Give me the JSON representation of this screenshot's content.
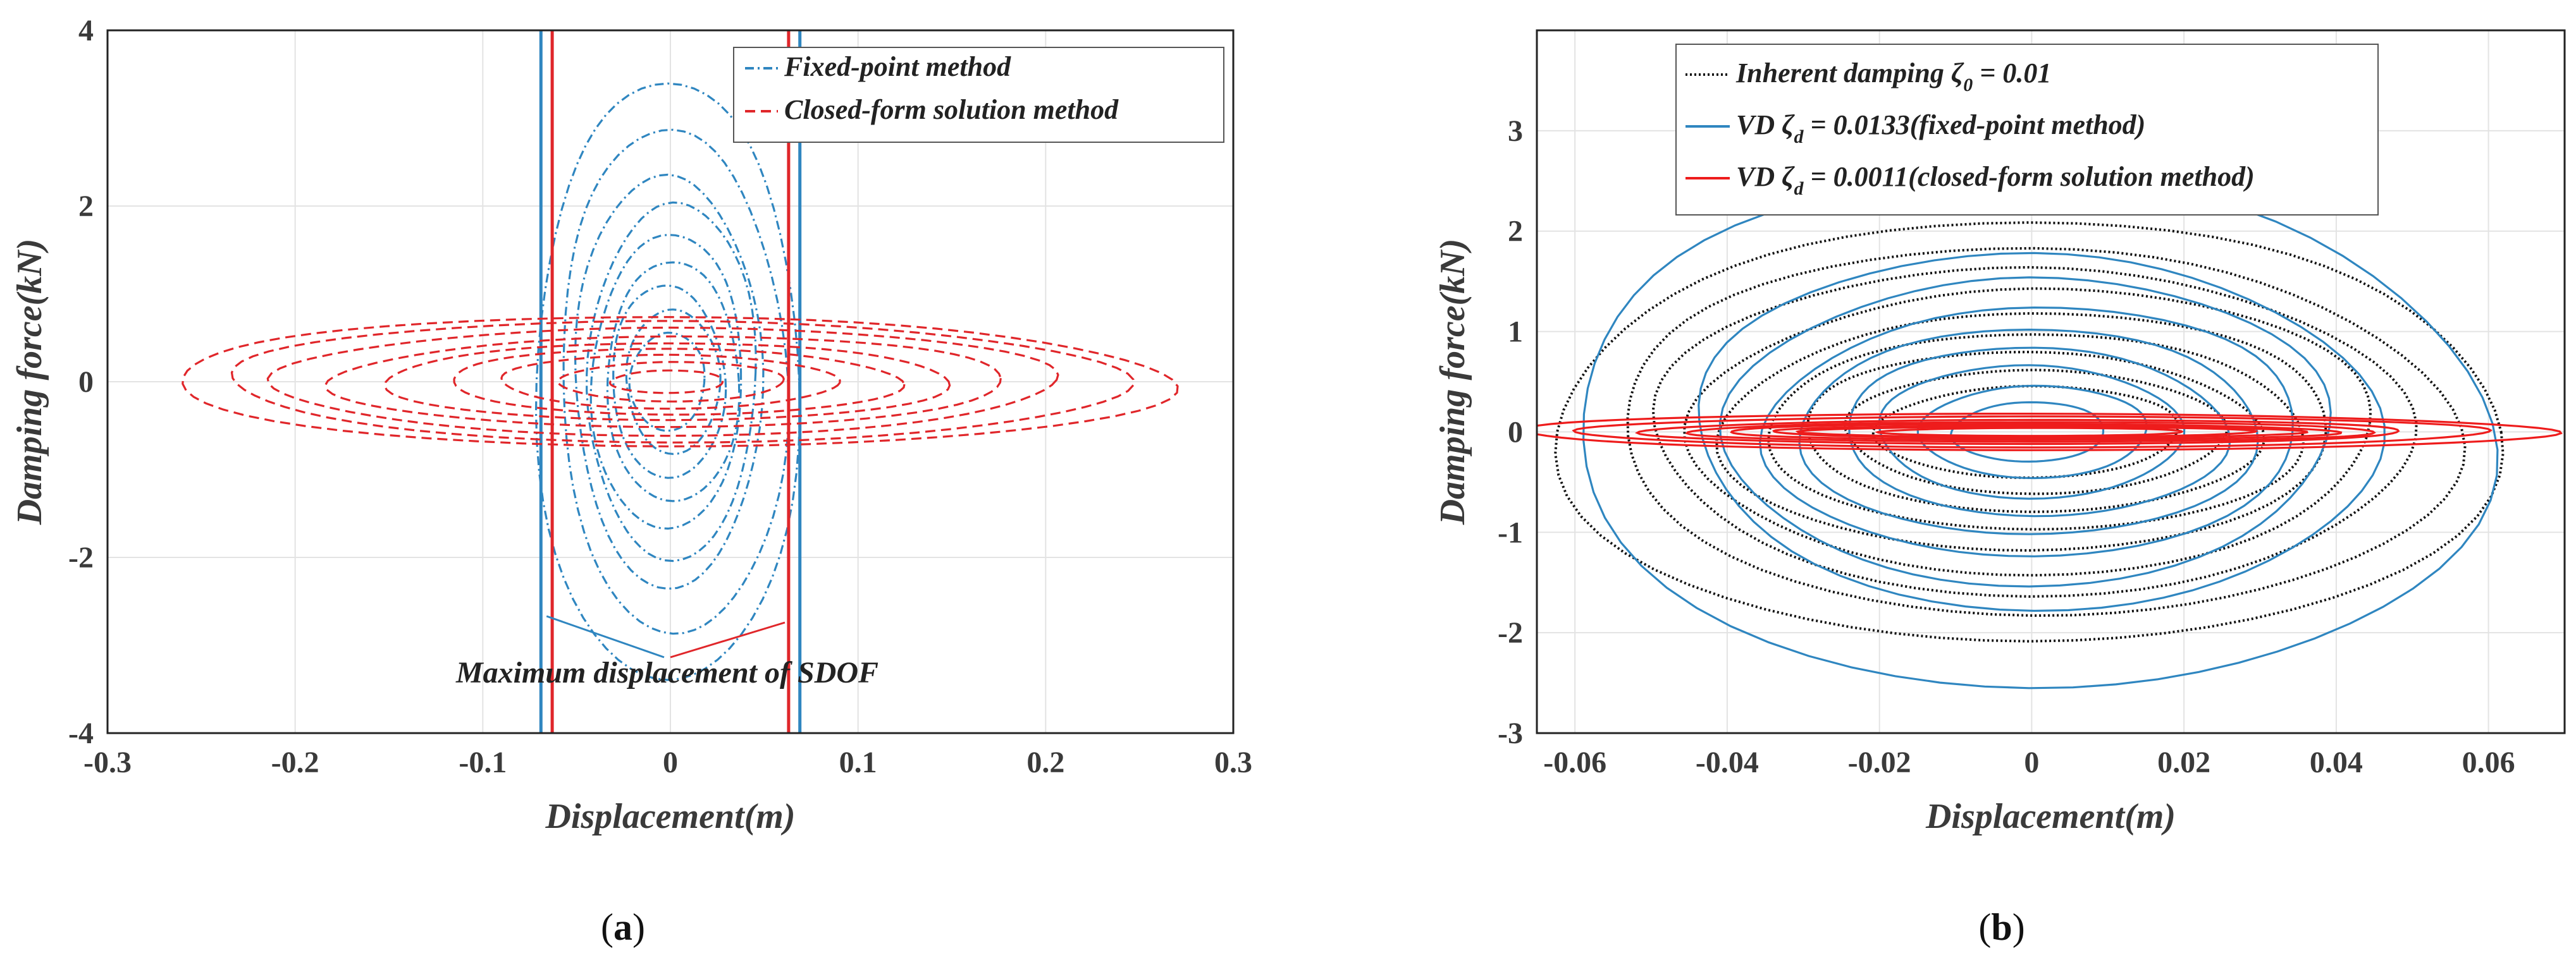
{
  "chart_data": [
    {
      "id": "a",
      "type": "line",
      "caption_letter": "a",
      "xlabel": "Displacement(m)",
      "ylabel": "Damping force(kN)",
      "xlim": [
        -0.3,
        0.3
      ],
      "ylim": [
        -4,
        4
      ],
      "xticks": [
        -0.3,
        -0.2,
        -0.1,
        0,
        0.1,
        0.2,
        0.3
      ],
      "xtick_labels": [
        "-0.3",
        "-0.2",
        "-0.1",
        "0",
        "0.1",
        "0.2",
        "0.3"
      ],
      "yticks": [
        -4,
        -2,
        0,
        2,
        4
      ],
      "ytick_labels": [
        "-4",
        "-2",
        "0",
        "2",
        "4"
      ],
      "grid": true,
      "legend_position": "top-right",
      "series": [
        {
          "name": "Fixed-point method",
          "color": "#2f86c0",
          "style": "dash-dot",
          "loops": [
            [
              0.07,
              3.5
            ],
            [
              0.06,
              2.9
            ],
            [
              0.05,
              2.3
            ],
            [
              0.045,
              2.0
            ],
            [
              0.04,
              1.7
            ],
            [
              0.035,
              1.4
            ],
            [
              0.03,
              1.1
            ],
            [
              0.025,
              0.8
            ],
            [
              0.02,
              0.55
            ]
          ],
          "vlines": [
            -0.069,
            0.069
          ]
        },
        {
          "name": "Closed-form solution method",
          "color": "#e0262a",
          "style": "dashed",
          "loops": [
            [
              0.265,
              0.75
            ],
            [
              0.24,
              0.68
            ],
            [
              0.21,
              0.6
            ],
            [
              0.18,
              0.52
            ],
            [
              0.15,
              0.45
            ],
            [
              0.12,
              0.38
            ],
            [
              0.09,
              0.3
            ],
            [
              0.06,
              0.22
            ],
            [
              0.03,
              0.13
            ]
          ],
          "vlines": [
            -0.063,
            0.063
          ]
        }
      ],
      "annotation": "Maximum displacement of SDOF"
    },
    {
      "id": "b",
      "type": "line",
      "caption_letter": "b",
      "xlabel": "Displacement(m)",
      "ylabel": "Damping force(kN)",
      "xlim": [
        -0.065,
        0.07
      ],
      "ylim": [
        -3,
        4
      ],
      "xticks": [
        -0.06,
        -0.04,
        -0.02,
        0,
        0.02,
        0.04,
        0.06
      ],
      "xtick_labels": [
        "-0.06",
        "-0.04",
        "-0.02",
        "0",
        "0.02",
        "0.04",
        "0.06"
      ],
      "yticks": [
        -3,
        -2,
        -1,
        0,
        1,
        2,
        3
      ],
      "ytick_labels": [
        "-3",
        "-2",
        "-1",
        "0",
        "1",
        "2",
        "3"
      ],
      "grid": true,
      "legend_position": "top-left",
      "series": [
        {
          "name": "Inherent damping",
          "legend_prefix": "Inherent damping ",
          "legend_symbol": "ζ",
          "legend_sub": "0",
          "legend_suffix": " = 0.01",
          "color": "#111111",
          "style": "dotted",
          "loops": [
            [
              0.062,
              2.15
            ],
            [
              0.055,
              1.85
            ],
            [
              0.05,
              1.6
            ],
            [
              0.045,
              1.4
            ],
            [
              0.04,
              1.2
            ],
            [
              0.035,
              1.0
            ],
            [
              0.03,
              0.8
            ],
            [
              0.025,
              0.6
            ],
            [
              0.02,
              0.45
            ]
          ]
        },
        {
          "name": "VD fixed-point method",
          "legend_prefix": "VD ",
          "legend_symbol": "ζ",
          "legend_sub": "d",
          "legend_suffix": " = 0.0133(fixed-point method)",
          "color": "#2f86c0",
          "style": "solid",
          "loops": [
            [
              0.06,
              2.6
            ],
            [
              0.045,
              1.75
            ],
            [
              0.04,
              1.5
            ],
            [
              0.035,
              1.25
            ],
            [
              0.03,
              1.05
            ],
            [
              0.025,
              0.85
            ],
            [
              0.02,
              0.65
            ],
            [
              0.015,
              0.45
            ],
            [
              0.01,
              0.3
            ]
          ]
        },
        {
          "name": "VD closed-form solution method",
          "legend_prefix": "VD ",
          "legend_symbol": "ζ",
          "legend_sub": "d",
          "legend_suffix": " = 0.0011(closed-form solution method)",
          "color": "#ee1c1c",
          "style": "solid",
          "loops": [
            [
              0.068,
              0.18
            ],
            [
              0.06,
              0.15
            ],
            [
              0.05,
              0.12
            ],
            [
              0.045,
              0.1
            ],
            [
              0.04,
              0.08
            ],
            [
              0.035,
              0.06
            ],
            [
              0.03,
              0.05
            ],
            [
              0.02,
              0.04
            ]
          ]
        }
      ]
    }
  ]
}
